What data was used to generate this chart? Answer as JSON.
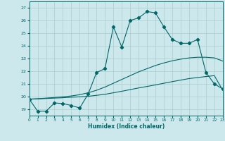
{
  "xlabel": "Humidex (Indice chaleur)",
  "bg_color": "#cce8ec",
  "grid_color": "#aacccc",
  "line_color": "#006666",
  "xlim": [
    0,
    23
  ],
  "ylim": [
    18.5,
    27.5
  ],
  "yticks": [
    19,
    20,
    21,
    22,
    23,
    24,
    25,
    26,
    27
  ],
  "xticks": [
    0,
    1,
    2,
    3,
    4,
    5,
    6,
    7,
    8,
    9,
    10,
    11,
    12,
    13,
    14,
    15,
    16,
    17,
    18,
    19,
    20,
    21,
    22,
    23
  ],
  "line1_x": [
    0,
    1,
    2,
    3,
    4,
    5,
    6,
    7,
    8,
    9,
    10,
    11,
    12,
    13,
    14,
    15,
    16,
    17,
    18,
    19,
    20,
    21,
    22,
    23
  ],
  "line1_y": [
    19.8,
    19.82,
    19.85,
    19.88,
    19.91,
    19.95,
    19.98,
    20.02,
    20.1,
    20.18,
    20.3,
    20.42,
    20.55,
    20.68,
    20.8,
    20.92,
    21.05,
    21.18,
    21.3,
    21.42,
    21.5,
    21.58,
    21.65,
    20.5
  ],
  "line2_x": [
    0,
    1,
    2,
    3,
    4,
    5,
    6,
    7,
    8,
    9,
    10,
    11,
    12,
    13,
    14,
    15,
    16,
    17,
    18,
    19,
    20,
    21,
    22,
    23
  ],
  "line2_y": [
    19.8,
    19.83,
    19.88,
    19.93,
    19.98,
    20.05,
    20.15,
    20.3,
    20.5,
    20.75,
    21.05,
    21.35,
    21.65,
    21.95,
    22.2,
    22.45,
    22.65,
    22.82,
    22.95,
    23.05,
    23.1,
    23.1,
    23.05,
    22.8
  ],
  "line3_x": [
    0,
    1,
    2,
    3,
    4,
    5,
    6,
    7,
    8,
    9,
    10,
    11,
    12,
    13,
    14,
    15,
    16,
    17,
    18,
    19,
    20,
    21,
    22,
    23
  ],
  "line3_y": [
    19.8,
    18.85,
    18.85,
    19.5,
    19.45,
    19.3,
    19.1,
    20.2,
    21.9,
    22.2,
    25.5,
    23.9,
    26.0,
    26.2,
    26.7,
    26.6,
    25.5,
    24.5,
    24.2,
    24.2,
    24.5,
    21.9,
    21.0,
    20.6
  ]
}
